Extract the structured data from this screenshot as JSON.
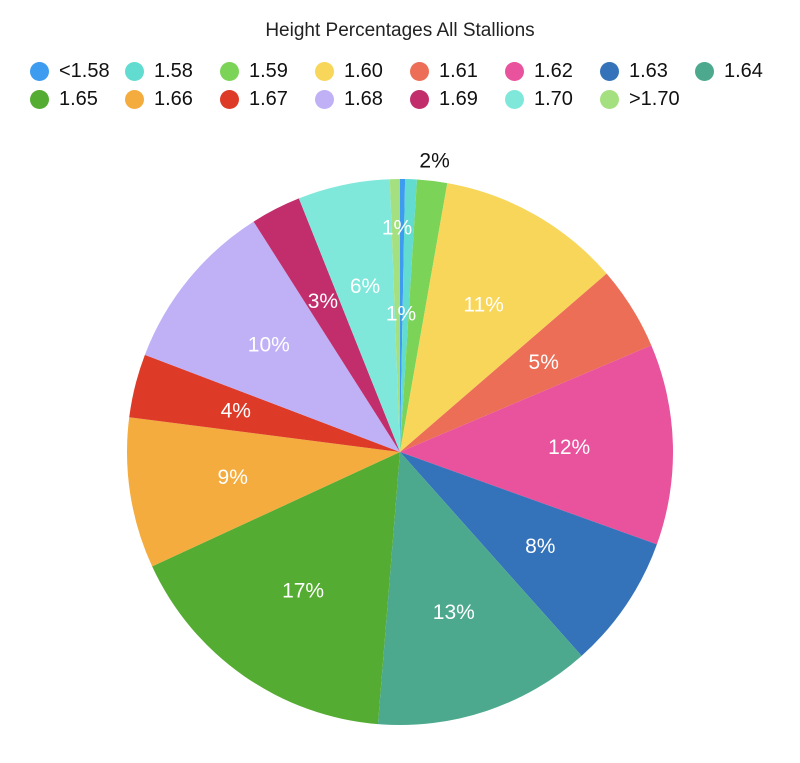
{
  "chart_data": {
    "type": "pie",
    "title": "Height Percentages All Stallions",
    "legend_position": "top",
    "slices": [
      {
        "label": "<1.58",
        "value": 0.3,
        "color": "#3d9bf0",
        "data_label": ""
      },
      {
        "label": "1.58",
        "value": 0.7,
        "color": "#62dcd0",
        "data_label": "1%"
      },
      {
        "label": "1.59",
        "value": 1.8,
        "color": "#7bd358",
        "data_label": "2%"
      },
      {
        "label": "1.60",
        "value": 11,
        "color": "#f8d65a",
        "data_label": "11%"
      },
      {
        "label": "1.61",
        "value": 5,
        "color": "#ec6e57",
        "data_label": "5%"
      },
      {
        "label": "1.62",
        "value": 12,
        "color": "#e9529c",
        "data_label": "12%"
      },
      {
        "label": "1.63",
        "value": 8,
        "color": "#3473b9",
        "data_label": "8%"
      },
      {
        "label": "1.64",
        "value": 13,
        "color": "#4ca98d",
        "data_label": "13%"
      },
      {
        "label": "1.65",
        "value": 17,
        "color": "#54ad32",
        "data_label": "17%"
      },
      {
        "label": "1.66",
        "value": 9,
        "color": "#f4ac3f",
        "data_label": "9%"
      },
      {
        "label": "1.67",
        "value": 3.8,
        "color": "#dd3b27",
        "data_label": "4%"
      },
      {
        "label": "1.68",
        "value": 10.3,
        "color": "#c0b1f7",
        "data_label": "10%"
      },
      {
        "label": "1.69",
        "value": 3,
        "color": "#c22e6c",
        "data_label": "3%"
      },
      {
        "label": "1.70",
        "value": 5.5,
        "color": "#7fe8da",
        "data_label": "6%"
      },
      {
        "label": ">1.70",
        "value": 0.6,
        "color": "#a5e080",
        "data_label": "1%"
      }
    ]
  }
}
